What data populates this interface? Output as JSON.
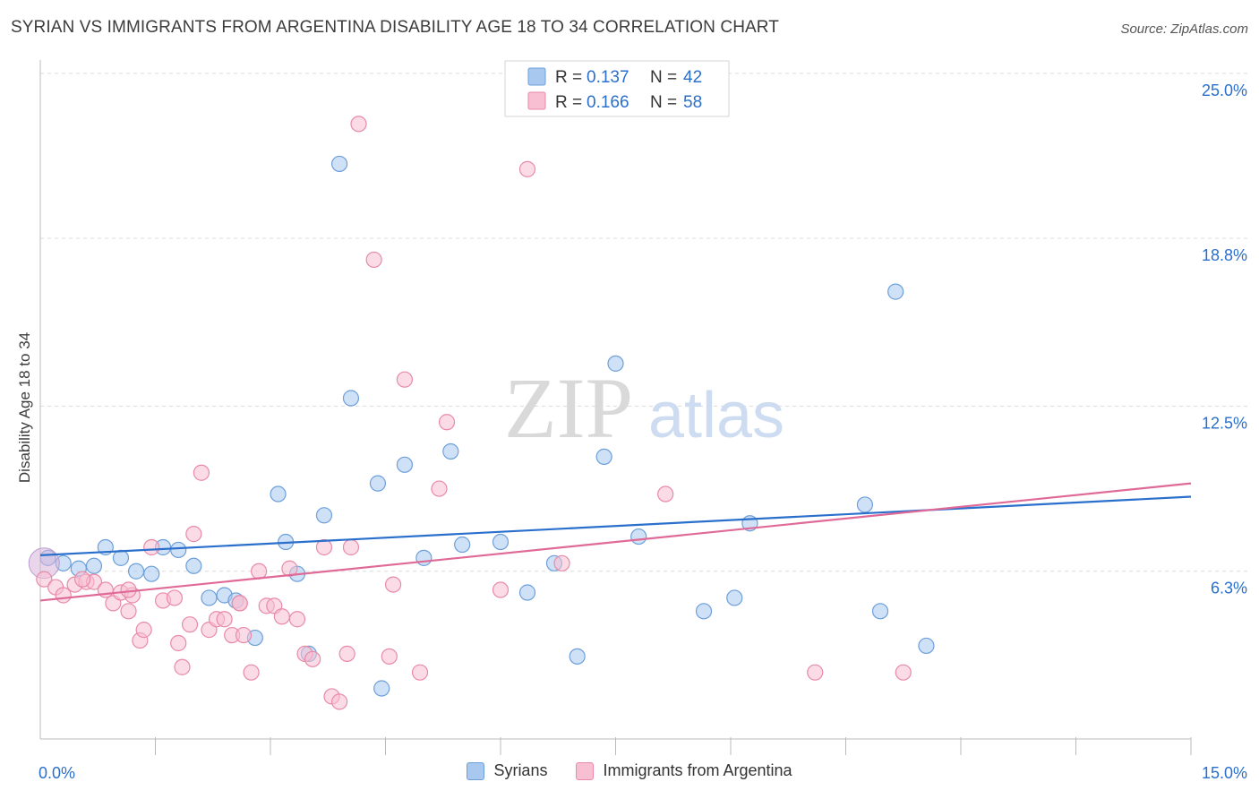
{
  "title": "SYRIAN VS IMMIGRANTS FROM ARGENTINA DISABILITY AGE 18 TO 34 CORRELATION CHART",
  "source": "Source: ZipAtlas.com",
  "watermark": {
    "zip": "ZIP",
    "atlas": "atlas"
  },
  "chart_data": {
    "type": "scatter",
    "ylabel": "Disability Age 18 to 34",
    "xlim": [
      0,
      15
    ],
    "ylim": [
      0,
      25.5
    ],
    "y_ticks": [
      {
        "value": 6.3,
        "label": "6.3%"
      },
      {
        "value": 12.5,
        "label": "12.5%"
      },
      {
        "value": 18.8,
        "label": "18.8%"
      },
      {
        "value": 25.0,
        "label": "25.0%"
      }
    ],
    "x_tick_labels": {
      "min": "0.0%",
      "max": "15.0%"
    },
    "x_minor_ticks": [
      1.5,
      3.0,
      4.5,
      6.0,
      7.5,
      9.0,
      10.5,
      12.0,
      13.5,
      15.0
    ],
    "legend": [
      {
        "r_label": "R = ",
        "r": "0.137",
        "n_label": "N = ",
        "n": "42"
      },
      {
        "r_label": "R = ",
        "r": "0.166",
        "n_label": "N = ",
        "n": "58"
      }
    ],
    "series": [
      {
        "name": "Syrians",
        "color": "#a8c8f0",
        "edge": "#6d9fd9",
        "line_color": "#2a6fcc",
        "trend": [
          [
            0,
            6.9
          ],
          [
            15,
            9.1
          ]
        ],
        "points": [
          [
            0.1,
            6.8
          ],
          [
            0.3,
            6.6
          ],
          [
            0.5,
            6.4
          ],
          [
            0.7,
            6.5
          ],
          [
            0.85,
            7.2
          ],
          [
            1.05,
            6.8
          ],
          [
            1.25,
            6.3
          ],
          [
            1.45,
            6.2
          ],
          [
            1.6,
            7.2
          ],
          [
            1.8,
            7.1
          ],
          [
            2.0,
            6.5
          ],
          [
            2.2,
            5.3
          ],
          [
            2.4,
            5.4
          ],
          [
            2.55,
            5.2
          ],
          [
            2.8,
            3.8
          ],
          [
            3.1,
            9.2
          ],
          [
            3.2,
            7.4
          ],
          [
            3.35,
            6.2
          ],
          [
            3.5,
            3.2
          ],
          [
            3.7,
            8.4
          ],
          [
            3.9,
            21.6
          ],
          [
            4.05,
            12.8
          ],
          [
            4.4,
            9.6
          ],
          [
            4.45,
            1.9
          ],
          [
            4.75,
            10.3
          ],
          [
            5.0,
            6.8
          ],
          [
            5.35,
            10.8
          ],
          [
            5.5,
            7.3
          ],
          [
            6.0,
            7.4
          ],
          [
            6.35,
            5.5
          ],
          [
            6.7,
            6.6
          ],
          [
            7.0,
            3.1
          ],
          [
            7.35,
            10.6
          ],
          [
            7.5,
            14.1
          ],
          [
            7.8,
            7.6
          ],
          [
            8.65,
            4.8
          ],
          [
            9.05,
            5.3
          ],
          [
            9.25,
            8.1
          ],
          [
            10.75,
            8.8
          ],
          [
            10.95,
            4.8
          ],
          [
            11.15,
            16.8
          ],
          [
            11.55,
            3.5
          ]
        ]
      },
      {
        "name": "Immigrants from Argentina",
        "color": "#f7bfd1",
        "edge": "#e88aa8",
        "line_color": "#e06a97",
        "trend": [
          [
            0,
            5.2
          ],
          [
            15,
            9.6
          ]
        ],
        "points": [
          [
            0.05,
            6.0
          ],
          [
            0.2,
            5.7
          ],
          [
            0.3,
            5.4
          ],
          [
            0.45,
            5.8
          ],
          [
            0.6,
            5.9
          ],
          [
            0.7,
            5.9
          ],
          [
            0.85,
            5.6
          ],
          [
            0.95,
            5.1
          ],
          [
            1.05,
            5.5
          ],
          [
            1.15,
            4.8
          ],
          [
            1.2,
            5.4
          ],
          [
            1.3,
            3.7
          ],
          [
            1.35,
            4.1
          ],
          [
            1.45,
            7.2
          ],
          [
            1.6,
            5.2
          ],
          [
            1.75,
            5.3
          ],
          [
            1.85,
            2.7
          ],
          [
            1.95,
            4.3
          ],
          [
            2.0,
            7.7
          ],
          [
            2.1,
            10.0
          ],
          [
            2.2,
            4.1
          ],
          [
            2.3,
            4.5
          ],
          [
            2.4,
            4.5
          ],
          [
            2.5,
            3.9
          ],
          [
            2.6,
            5.1
          ],
          [
            2.65,
            3.9
          ],
          [
            2.75,
            2.5
          ],
          [
            2.85,
            6.3
          ],
          [
            2.95,
            5.0
          ],
          [
            3.05,
            5.0
          ],
          [
            3.15,
            4.6
          ],
          [
            3.25,
            6.4
          ],
          [
            3.35,
            4.5
          ],
          [
            3.45,
            3.2
          ],
          [
            3.55,
            3.0
          ],
          [
            3.7,
            7.2
          ],
          [
            3.8,
            1.6
          ],
          [
            3.9,
            1.4
          ],
          [
            4.0,
            3.2
          ],
          [
            4.05,
            7.2
          ],
          [
            4.35,
            18.0
          ],
          [
            4.55,
            3.1
          ],
          [
            4.6,
            5.8
          ],
          [
            4.75,
            13.5
          ],
          [
            4.95,
            2.5
          ],
          [
            5.2,
            9.4
          ],
          [
            5.3,
            11.9
          ],
          [
            6.0,
            5.6
          ],
          [
            6.35,
            21.4
          ],
          [
            6.8,
            6.6
          ],
          [
            8.15,
            9.2
          ],
          [
            10.1,
            2.5
          ],
          [
            11.25,
            2.5
          ],
          [
            4.15,
            23.1
          ],
          [
            1.8,
            3.6
          ],
          [
            2.6,
            5.1
          ],
          [
            0.55,
            6.0
          ],
          [
            1.15,
            5.6
          ]
        ]
      }
    ]
  }
}
